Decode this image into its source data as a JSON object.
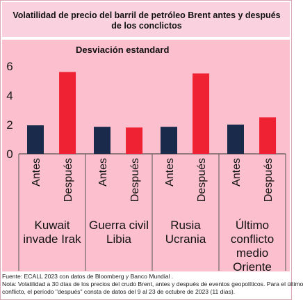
{
  "chart_data": {
    "type": "bar",
    "title": "Volatilidad de precio del barril de petróleo Brent antes y después de los conclictos",
    "ylabel": "Desviación estandard",
    "ylim": [
      0,
      6
    ],
    "yticks": [
      "0",
      "2",
      "4",
      "6"
    ],
    "grid": false,
    "categories": [
      [
        "Kuwait",
        "invade Irak"
      ],
      [
        "Guerra civil",
        "Libia"
      ],
      [
        "Rusia",
        "Ucrania"
      ],
      [
        "Último",
        "conflicto",
        "medio",
        "Oriente"
      ]
    ],
    "series": [
      {
        "name": "Antes",
        "color": "#1a2a4a",
        "values": [
          1.95,
          1.85,
          1.85,
          2.0
        ]
      },
      {
        "name": "Después",
        "color": "#ee2233",
        "values": [
          5.6,
          1.8,
          5.5,
          2.5
        ]
      }
    ]
  },
  "footer": {
    "line1": "Fuente: ECALL 2023 con datos de Bloomberg y Banco Mundial .",
    "line2": "Nota: Volatilidad a 30 días de los precios del crudo Brent, antes y después de eventos geopolíticos. Para el último",
    "line3": "conflicto, el período \"después\" consta de datos del 9 al 23 de octubre de 2023 (11 días)."
  }
}
